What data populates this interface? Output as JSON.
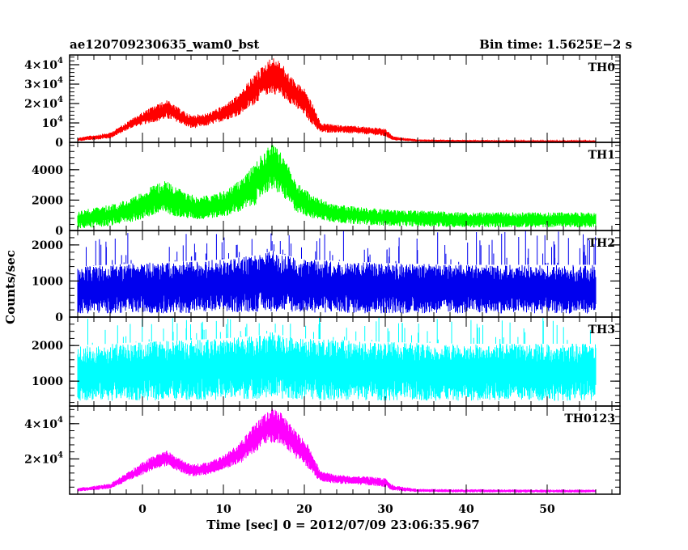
{
  "header": {
    "title": "ae120709230635_wam0_bst",
    "bin_time": "Bin time: 1.5625E−2 s"
  },
  "chart_data": {
    "type": "line",
    "xlabel": "Time [sec] 0 = 2012/07/09 23:06:35.967",
    "ylabel": "Counts/sec",
    "xlim": [
      -9,
      59
    ],
    "xticks": [
      0,
      10,
      20,
      30,
      40,
      50
    ],
    "xtick_labels": [
      "0",
      "10",
      "20",
      "30",
      "40",
      "50"
    ],
    "panels": [
      {
        "name": "TH0",
        "color": "#ff0000",
        "ylim": [
          0,
          45000
        ],
        "yticks": [
          0,
          10000,
          20000,
          30000,
          40000
        ],
        "ytick_labels": [
          {
            "text": "0"
          },
          {
            "base": "10",
            "exp": "4"
          },
          {
            "base": "2×10",
            "exp": "4"
          },
          {
            "base": "3×10",
            "exp": "4"
          },
          {
            "base": "4×10",
            "exp": "4"
          }
        ],
        "envelope": {
          "x": [
            -8,
            -4,
            -1,
            1,
            3,
            4,
            6,
            8,
            10,
            12,
            13,
            14,
            15,
            16,
            17,
            18,
            19,
            20,
            21,
            22,
            24,
            28,
            30,
            31,
            34,
            40,
            50,
            56
          ],
          "low": [
            500,
            2000,
            8000,
            10000,
            12000,
            11000,
            7000,
            8500,
            11000,
            14000,
            17000,
            20000,
            24000,
            25000,
            24000,
            21000,
            17000,
            14000,
            9000,
            5000,
            5000,
            4000,
            3000,
            1000,
            400,
            300,
            200,
            200
          ],
          "high": [
            2500,
            5000,
            13000,
            18000,
            22000,
            19000,
            14000,
            15000,
            19000,
            25000,
            31000,
            36000,
            40000,
            44000,
            42000,
            36000,
            31000,
            28000,
            20000,
            10000,
            9000,
            8000,
            7000,
            3000,
            1500,
            1200,
            1000,
            1000
          ]
        }
      },
      {
        "name": "TH1",
        "color": "#00ff00",
        "ylim": [
          0,
          5800
        ],
        "yticks": [
          0,
          2000,
          4000
        ],
        "ytick_labels": [
          {
            "text": "0"
          },
          {
            "text": "2000"
          },
          {
            "text": "4000"
          }
        ],
        "envelope": {
          "x": [
            -8,
            -4,
            -1,
            1,
            3,
            5,
            7,
            10,
            12,
            14,
            15,
            16,
            17,
            18,
            19,
            21,
            24,
            30,
            40,
            50,
            56
          ],
          "low": [
            100,
            300,
            600,
            900,
            1100,
            800,
            700,
            900,
            1200,
            1700,
            2400,
            2600,
            2400,
            1800,
            1200,
            800,
            500,
            300,
            200,
            200,
            200
          ],
          "high": [
            1300,
            1700,
            2200,
            2900,
            3300,
            2600,
            2200,
            2600,
            3300,
            4500,
            5200,
            5800,
            5200,
            4300,
            3300,
            2300,
            1700,
            1400,
            1200,
            1200,
            1200
          ]
        }
      },
      {
        "name": "TH2",
        "color": "#0000ee",
        "ylim": [
          0,
          2400
        ],
        "yticks": [
          0,
          1000,
          2000
        ],
        "ytick_labels": [
          {
            "text": "0"
          },
          {
            "text": "1000"
          },
          {
            "text": "2000"
          }
        ],
        "envelope": {
          "x": [
            -8,
            0,
            10,
            15,
            16,
            17,
            20,
            30,
            40,
            50,
            56
          ],
          "low": [
            100,
            100,
            120,
            150,
            160,
            150,
            120,
            100,
            100,
            100,
            100
          ],
          "high": [
            1400,
            1500,
            1600,
            1750,
            1850,
            1750,
            1600,
            1500,
            1450,
            1450,
            1450
          ]
        },
        "spikes": 110,
        "spike_max": 2400
      },
      {
        "name": "TH3",
        "color": "#00ffff",
        "ylim": [
          300,
          2800
        ],
        "yticks": [
          1000,
          2000
        ],
        "ytick_labels": [
          {
            "text": "1000"
          },
          {
            "text": "2000"
          }
        ],
        "envelope": {
          "x": [
            -8,
            0,
            10,
            15,
            16,
            17,
            20,
            30,
            40,
            50,
            56
          ],
          "low": [
            450,
            450,
            480,
            500,
            520,
            500,
            480,
            450,
            450,
            450,
            450
          ],
          "high": [
            2000,
            2100,
            2200,
            2300,
            2400,
            2300,
            2200,
            2100,
            2050,
            2050,
            2050
          ]
        },
        "spikes": 90,
        "spike_max": 2800
      },
      {
        "name": "TH0123",
        "color": "#ff00ff",
        "ylim": [
          0,
          50000
        ],
        "yticks": [
          20000,
          40000
        ],
        "ytick_labels": [
          {
            "base": "2×10",
            "exp": "4"
          },
          {
            "base": "4×10",
            "exp": "4"
          }
        ],
        "envelope": {
          "x": [
            -8,
            -4,
            -1,
            1,
            3,
            4,
            6,
            8,
            10,
            12,
            13,
            14,
            15,
            16,
            17,
            18,
            19,
            20,
            21,
            22,
            24,
            28,
            30,
            31,
            34,
            40,
            50,
            56
          ],
          "low": [
            1500,
            3000,
            9000,
            13000,
            16000,
            14000,
            10000,
            11000,
            14000,
            17000,
            21000,
            24000,
            28000,
            29000,
            28000,
            25000,
            20000,
            17000,
            11000,
            7000,
            6000,
            5000,
            4000,
            2000,
            1200,
            1000,
            900,
            900
          ],
          "high": [
            3500,
            6000,
            15000,
            21000,
            25000,
            22000,
            17000,
            18000,
            22000,
            29000,
            35000,
            41000,
            45000,
            49000,
            47000,
            41000,
            36000,
            32000,
            23000,
            13000,
            11000,
            10000,
            9000,
            5000,
            3000,
            2800,
            2600,
            2600
          ]
        }
      }
    ]
  }
}
